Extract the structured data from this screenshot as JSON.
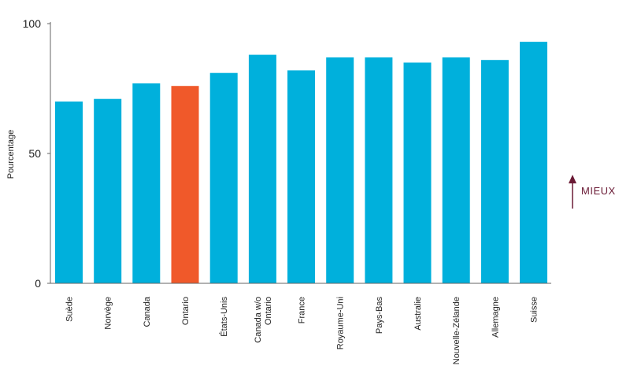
{
  "chart_data": {
    "type": "bar",
    "ylabel": "Pourcentage",
    "ylim": [
      0,
      100
    ],
    "yticks": [
      "100",
      "50",
      "0"
    ],
    "grid": false,
    "categories": [
      "Suède",
      "Norvège",
      "Canada",
      "Ontario",
      "États-Unis",
      [
        "Canada w/o",
        "Ontario"
      ],
      "France",
      "Royaume-Uni",
      "Pays-Bas",
      "Australie",
      "Nouvelle-Zélande",
      "Allemagne",
      "Suisse"
    ],
    "values": [
      70,
      71,
      77,
      76,
      81,
      88,
      82,
      87,
      87,
      85,
      87,
      86,
      93
    ],
    "highlight_index": 3,
    "annotation": "MIEUX"
  },
  "colors": {
    "bar": "#00b0dc",
    "highlight": "#f0592a",
    "axis": "#666666",
    "annotation": "#6a1a35"
  }
}
